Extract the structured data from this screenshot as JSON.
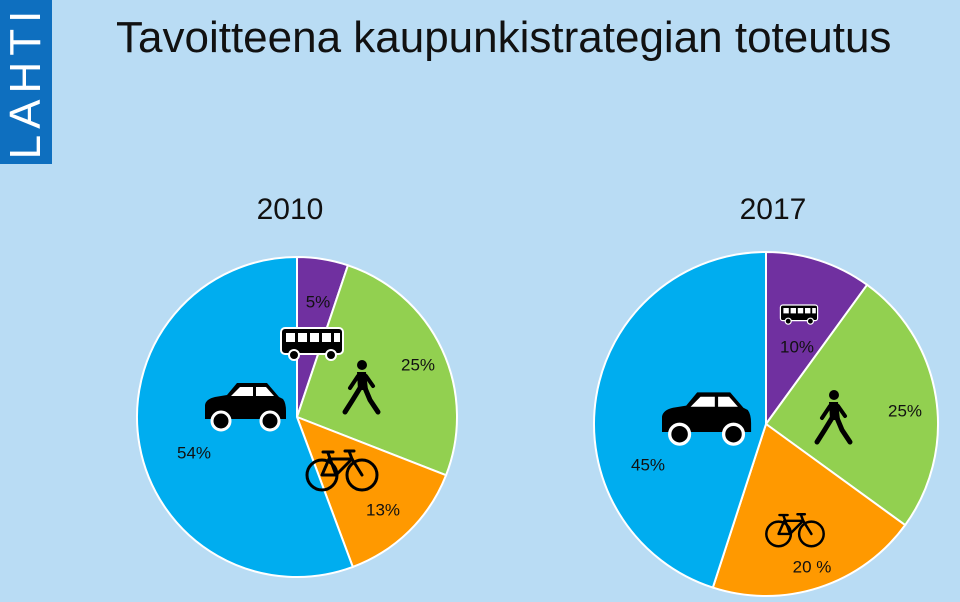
{
  "logo": {
    "text": "LAHTI",
    "color": "#0e6fbf"
  },
  "title": "Tavoitteena kaupunkistrategian toteutus",
  "colors": {
    "background": "#b9dcf4",
    "car": "#00adef",
    "bus": "#7030a0",
    "walk": "#92d050",
    "bike": "#ff9900"
  },
  "chart_data": [
    {
      "type": "pie",
      "title": "2010",
      "slices": [
        {
          "name": "bus",
          "icon": "bus-icon",
          "value": 5,
          "label": "5%",
          "color": "#7030a0"
        },
        {
          "name": "walk",
          "icon": "pedestrian-icon",
          "value": 25,
          "label": "25%",
          "color": "#92d050"
        },
        {
          "name": "bike",
          "icon": "bicycle-icon",
          "value": 13,
          "label": "13%",
          "color": "#ff9900"
        },
        {
          "name": "car",
          "icon": "car-icon",
          "value": 54,
          "label": "54%",
          "color": "#00adef"
        }
      ]
    },
    {
      "type": "pie",
      "title": "2017",
      "slices": [
        {
          "name": "bus",
          "icon": "bus-icon",
          "value": 10,
          "label": "10%",
          "color": "#7030a0"
        },
        {
          "name": "walk",
          "icon": "pedestrian-icon",
          "value": 25,
          "label": "25%",
          "color": "#92d050"
        },
        {
          "name": "bike",
          "icon": "bicycle-icon",
          "value": 20,
          "label": "20 %",
          "color": "#ff9900"
        },
        {
          "name": "car",
          "icon": "car-icon",
          "value": 45,
          "label": "45%",
          "color": "#00adef"
        }
      ]
    }
  ]
}
